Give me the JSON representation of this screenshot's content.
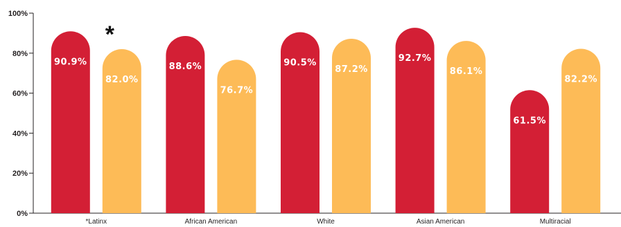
{
  "chart_data": {
    "type": "bar",
    "categories": [
      "*Latinx",
      "African American",
      "White",
      "Asian American",
      "Multiracial"
    ],
    "series": [
      {
        "values": [
          90.9,
          88.6,
          90.5,
          92.7,
          61.5
        ],
        "value_labels": [
          "90.9%",
          "88.6%",
          "90.5%",
          "92.7%",
          "61.5%"
        ]
      },
      {
        "values": [
          82.0,
          76.7,
          87.2,
          86.1,
          82.2
        ],
        "value_labels": [
          "82.0%",
          "76.7%",
          "87.2%",
          "86.1%",
          "82.2%"
        ]
      }
    ],
    "ylim": [
      0,
      100
    ],
    "yticks": [
      "0%",
      "20%",
      "40%",
      "60%",
      "80%",
      "100%"
    ],
    "annotation": "*",
    "grid": false,
    "colors": {
      "series_1": "#d31f35",
      "series_2": "#fdbb57",
      "axis": "#231f20"
    }
  }
}
